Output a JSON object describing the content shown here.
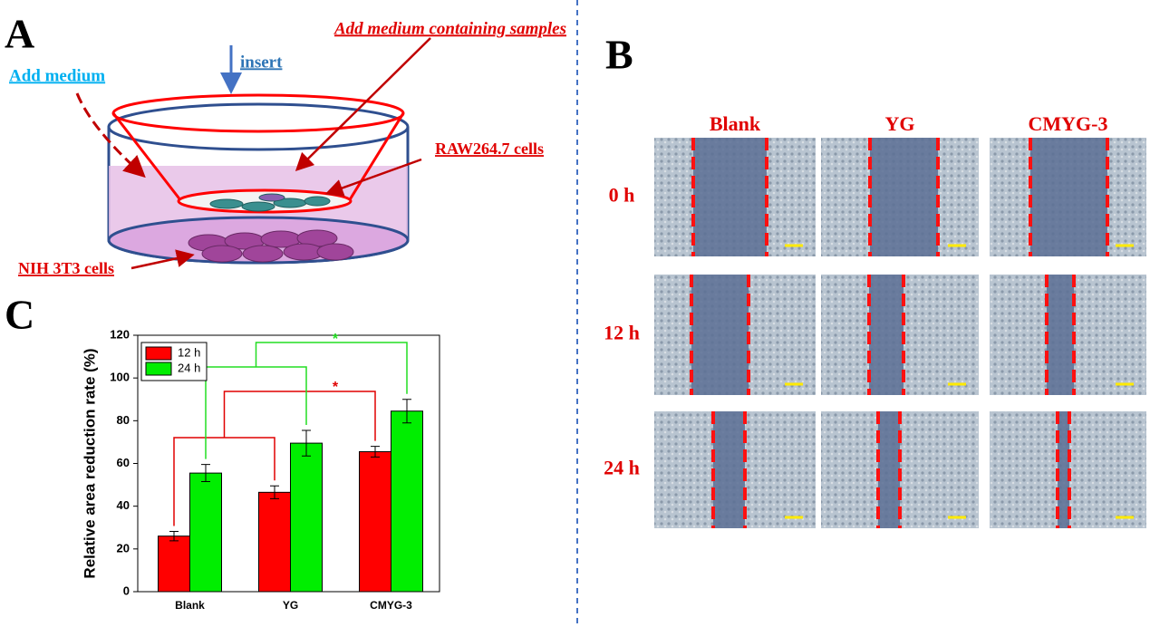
{
  "panel_a": {
    "label": "A",
    "insert": "insert",
    "add_medium": "Add medium",
    "add_medium_samples": "Add medium containing samples",
    "raw_cells": "RAW264.7 cells",
    "nih_cells": "NIH 3T3 cells"
  },
  "panel_b": {
    "label": "B",
    "columns": [
      "Blank",
      "YG",
      "CMYG-3"
    ],
    "rows": [
      "0 h",
      "12 h",
      "24 h"
    ]
  },
  "panel_c_label": "C",
  "chart_data": {
    "type": "bar",
    "y_label": "Relative area reduction rate (%)",
    "categories": [
      "Blank",
      "YG",
      "CMYG-3"
    ],
    "series": [
      {
        "name": "12 h",
        "color": "#ff0000",
        "values": [
          26,
          46.5,
          65.5
        ],
        "errors": [
          2.2,
          3,
          2.5
        ]
      },
      {
        "name": "24 h",
        "color": "#00ee00",
        "values": [
          55.5,
          69.5,
          84.5
        ],
        "errors": [
          4,
          6,
          5.5
        ]
      }
    ],
    "ylim": [
      0,
      120
    ],
    "yticks": [
      0,
      20,
      40,
      60,
      80,
      100,
      120
    ],
    "legend": "upper left",
    "annotations": [
      "*",
      "*"
    ]
  }
}
